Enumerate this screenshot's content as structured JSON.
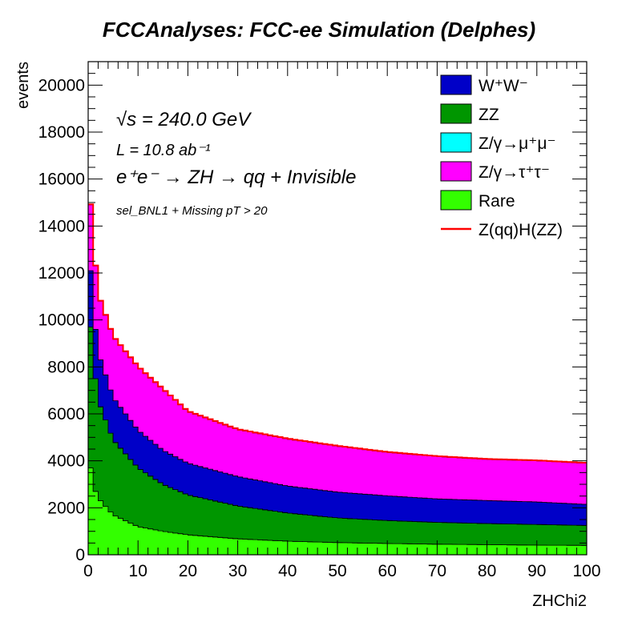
{
  "chart_data": {
    "type": "area",
    "title": "FCCAnalyses: FCC-ee Simulation (Delphes)",
    "xlabel": "ZHChi2",
    "ylabel": "events",
    "xlim": [
      0,
      100
    ],
    "ylim": [
      0,
      21000
    ],
    "x_ticks": [
      "0",
      "10",
      "20",
      "30",
      "40",
      "50",
      "60",
      "70",
      "80",
      "90",
      "100"
    ],
    "y_ticks": [
      "0",
      "2000",
      "4000",
      "6000",
      "8000",
      "10000",
      "12000",
      "14000",
      "16000",
      "18000",
      "20000"
    ],
    "annotations": {
      "sqrt_s": "√s = 240.0 GeV",
      "lumi": "L = 10.8 ab⁻¹",
      "process": "e⁺e⁻ → ZH → qq + Invisible",
      "selection": "sel_BNL1 + Missing pT > 20"
    },
    "legend_position": "top-right",
    "legend": [
      {
        "label": "W⁺W⁻",
        "color": "#0000c8",
        "kind": "fill"
      },
      {
        "label": "ZZ",
        "color": "#009600",
        "kind": "fill"
      },
      {
        "label": "Z/γ→μ⁺μ⁻",
        "color": "#00ffff",
        "kind": "fill"
      },
      {
        "label": "Z/γ→τ⁺τ⁻",
        "color": "#ff00ff",
        "kind": "fill"
      },
      {
        "label": "Rare",
        "color": "#33ff00",
        "kind": "fill"
      },
      {
        "label": "Z(qq)H(ZZ)",
        "color": "#ff0000",
        "kind": "line"
      }
    ],
    "stacked": true,
    "bin_width": 1,
    "series": [
      {
        "name": "Rare",
        "color": "#33ff00",
        "x": [
          0.5,
          1.5,
          2.5,
          5,
          10,
          15,
          20,
          30,
          40,
          50,
          60,
          70,
          80,
          90,
          99.5
        ],
        "values": [
          3700,
          2700,
          2300,
          1700,
          1200,
          1000,
          850,
          680,
          580,
          520,
          480,
          450,
          430,
          410,
          400
        ]
      },
      {
        "name": "ZZ",
        "color": "#009600",
        "x": [
          0.5,
          1.5,
          2.5,
          5,
          10,
          15,
          20,
          30,
          40,
          50,
          60,
          70,
          80,
          90,
          99.5
        ],
        "values": [
          6000,
          4800,
          4000,
          3200,
          2500,
          2000,
          1700,
          1400,
          1200,
          1050,
          980,
          930,
          900,
          880,
          850
        ]
      },
      {
        "name": "Z/γ→μ⁺μ⁻",
        "color": "#00ffff",
        "x": [
          0.5,
          1.5,
          2.5,
          5,
          10,
          15,
          20,
          30,
          40,
          50,
          60,
          70,
          80,
          90,
          99.5
        ],
        "values": [
          0,
          0,
          0,
          0,
          0,
          0,
          0,
          0,
          0,
          0,
          0,
          0,
          0,
          0,
          0
        ]
      },
      {
        "name": "W⁺W⁻",
        "color": "#0000c8",
        "x": [
          0.5,
          1.5,
          2.5,
          5,
          10,
          15,
          20,
          30,
          40,
          50,
          60,
          70,
          80,
          90,
          99.5
        ],
        "values": [
          2400,
          2100,
          2000,
          1800,
          1600,
          1450,
          1350,
          1250,
          1150,
          1100,
          1050,
          1000,
          980,
          960,
          900
        ]
      },
      {
        "name": "Z/γ→τ⁺τ⁻",
        "color": "#ff00ff",
        "x": [
          0.5,
          1.5,
          2.5,
          5,
          10,
          15,
          20,
          30,
          40,
          50,
          60,
          70,
          80,
          90,
          99.5
        ],
        "values": [
          2800,
          2700,
          2500,
          2600,
          2700,
          2600,
          2200,
          2000,
          2000,
          1950,
          1850,
          1800,
          1750,
          1750,
          1750
        ]
      },
      {
        "name": "Z(qq)H(ZZ)",
        "color": "#ff0000",
        "line": true,
        "x": [
          0.5,
          1.5,
          2.5,
          5,
          10,
          15,
          20,
          30,
          40,
          50,
          60,
          70,
          80,
          90,
          99.5
        ],
        "values": [
          20,
          20,
          20,
          20,
          20,
          20,
          20,
          20,
          20,
          20,
          20,
          20,
          20,
          20,
          20
        ]
      }
    ]
  }
}
